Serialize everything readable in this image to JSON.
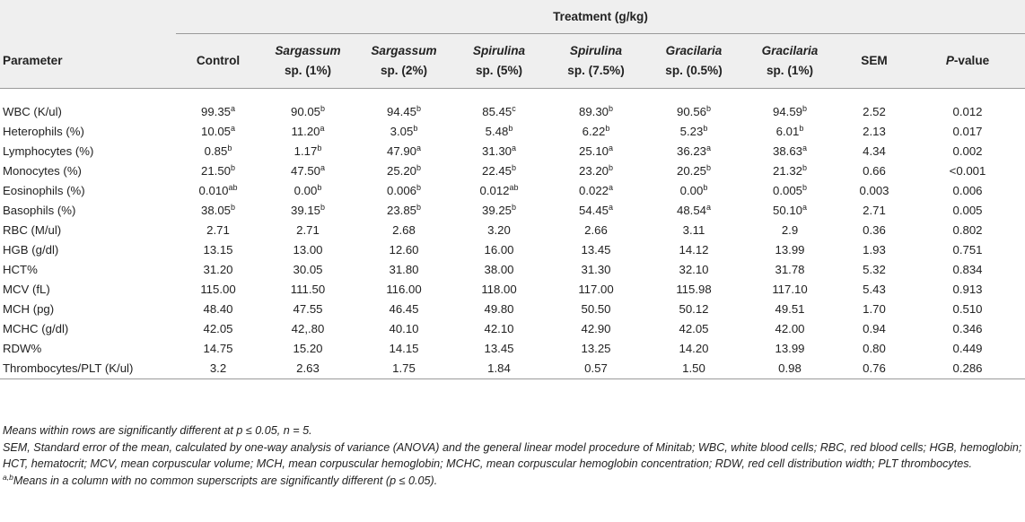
{
  "table": {
    "group_header": "Treatment (g/kg)",
    "columns": [
      {
        "main": "Parameter",
        "italic_part": "",
        "rest": ""
      },
      {
        "main": "Control",
        "italic_part": "",
        "rest": ""
      },
      {
        "main": "",
        "italic_part": "Sargassum",
        "rest": "sp. (1%)"
      },
      {
        "main": "",
        "italic_part": "Sargassum",
        "rest": "sp. (2%)"
      },
      {
        "main": "",
        "italic_part": "Spirulina",
        "rest": "sp. (5%)"
      },
      {
        "main": "",
        "italic_part": "Spirulina",
        "rest": "sp. (7.5%)"
      },
      {
        "main": "",
        "italic_part": "Gracilaria",
        "rest": "sp. (0.5%)"
      },
      {
        "main": "",
        "italic_part": "Gracilaria",
        "rest": "sp. (1%)"
      },
      {
        "main": "SEM",
        "italic_part": "",
        "rest": ""
      },
      {
        "main": "",
        "italic_part": "P",
        "rest": "-value"
      }
    ],
    "rows": [
      {
        "param": "WBC (K/ul)",
        "cells": [
          [
            "99.35",
            "a"
          ],
          [
            "90.05",
            "b"
          ],
          [
            "94.45",
            "b"
          ],
          [
            "85.45",
            "c"
          ],
          [
            "89.30",
            "b"
          ],
          [
            "90.56",
            "b"
          ],
          [
            "94.59",
            "b"
          ],
          [
            "2.52",
            ""
          ],
          [
            "0.012",
            ""
          ]
        ]
      },
      {
        "param": "Heterophils (%)",
        "cells": [
          [
            "10.05",
            "a"
          ],
          [
            "11.20",
            "a"
          ],
          [
            "3.05",
            "b"
          ],
          [
            "5.48",
            "b"
          ],
          [
            "6.22",
            "b"
          ],
          [
            "5.23",
            "b"
          ],
          [
            "6.01",
            "b"
          ],
          [
            "2.13",
            ""
          ],
          [
            "0.017",
            ""
          ]
        ]
      },
      {
        "param": "Lymphocytes (%)",
        "cells": [
          [
            "0.85",
            "b"
          ],
          [
            "1.17",
            "b"
          ],
          [
            "47.90",
            "a"
          ],
          [
            "31.30",
            "a"
          ],
          [
            "25.10",
            "a"
          ],
          [
            "36.23",
            "a"
          ],
          [
            "38.63",
            "a"
          ],
          [
            "4.34",
            ""
          ],
          [
            "0.002",
            ""
          ]
        ]
      },
      {
        "param": "Monocytes (%)",
        "cells": [
          [
            "21.50",
            "b"
          ],
          [
            "47.50",
            "a"
          ],
          [
            "25.20",
            "b"
          ],
          [
            "22.45",
            "b"
          ],
          [
            "23.20",
            "b"
          ],
          [
            "20.25",
            "b"
          ],
          [
            "21.32",
            "b"
          ],
          [
            "0.66",
            ""
          ],
          [
            "<0.001",
            ""
          ]
        ]
      },
      {
        "param": "Eosinophils (%)",
        "cells": [
          [
            "0.010",
            "ab"
          ],
          [
            "0.00",
            "b"
          ],
          [
            "0.006",
            "b"
          ],
          [
            "0.012",
            "ab"
          ],
          [
            "0.022",
            "a"
          ],
          [
            "0.00",
            "b"
          ],
          [
            "0.005",
            "b"
          ],
          [
            "0.003",
            ""
          ],
          [
            "0.006",
            ""
          ]
        ]
      },
      {
        "param": "Basophils (%)",
        "cells": [
          [
            "38.05",
            "b"
          ],
          [
            "39.15",
            "b"
          ],
          [
            "23.85",
            "b"
          ],
          [
            "39.25",
            "b"
          ],
          [
            "54.45",
            "a"
          ],
          [
            "48.54",
            "a"
          ],
          [
            "50.10",
            "a"
          ],
          [
            "2.71",
            ""
          ],
          [
            "0.005",
            ""
          ]
        ]
      },
      {
        "param": "RBC (M/ul)",
        "cells": [
          [
            "2.71",
            ""
          ],
          [
            "2.71",
            ""
          ],
          [
            "2.68",
            ""
          ],
          [
            "3.20",
            ""
          ],
          [
            "2.66",
            ""
          ],
          [
            "3.11",
            ""
          ],
          [
            "2.9",
            ""
          ],
          [
            "0.36",
            ""
          ],
          [
            "0.802",
            ""
          ]
        ]
      },
      {
        "param": "HGB (g/dl)",
        "cells": [
          [
            "13.15",
            ""
          ],
          [
            "13.00",
            ""
          ],
          [
            "12.60",
            ""
          ],
          [
            "16.00",
            ""
          ],
          [
            "13.45",
            ""
          ],
          [
            "14.12",
            ""
          ],
          [
            "13.99",
            ""
          ],
          [
            "1.93",
            ""
          ],
          [
            "0.751",
            ""
          ]
        ]
      },
      {
        "param": "HCT%",
        "cells": [
          [
            "31.20",
            ""
          ],
          [
            "30.05",
            ""
          ],
          [
            "31.80",
            ""
          ],
          [
            "38.00",
            ""
          ],
          [
            "31.30",
            ""
          ],
          [
            "32.10",
            ""
          ],
          [
            "31.78",
            ""
          ],
          [
            "5.32",
            ""
          ],
          [
            "0.834",
            ""
          ]
        ]
      },
      {
        "param": "MCV (fL)",
        "cells": [
          [
            "115.00",
            ""
          ],
          [
            "111.50",
            ""
          ],
          [
            "116.00",
            ""
          ],
          [
            "118.00",
            ""
          ],
          [
            "117.00",
            ""
          ],
          [
            "115.98",
            ""
          ],
          [
            "117.10",
            ""
          ],
          [
            "5.43",
            ""
          ],
          [
            "0.913",
            ""
          ]
        ]
      },
      {
        "param": "MCH (pg)",
        "cells": [
          [
            "48.40",
            ""
          ],
          [
            "47.55",
            ""
          ],
          [
            "46.45",
            ""
          ],
          [
            "49.80",
            ""
          ],
          [
            "50.50",
            ""
          ],
          [
            "50.12",
            ""
          ],
          [
            "49.51",
            ""
          ],
          [
            "1.70",
            ""
          ],
          [
            "0.510",
            ""
          ]
        ]
      },
      {
        "param": "MCHC (g/dl)",
        "cells": [
          [
            "42.05",
            ""
          ],
          [
            "42,.80",
            ""
          ],
          [
            "40.10",
            ""
          ],
          [
            "42.10",
            ""
          ],
          [
            "42.90",
            ""
          ],
          [
            "42.05",
            ""
          ],
          [
            "42.00",
            ""
          ],
          [
            "0.94",
            ""
          ],
          [
            "0.346",
            ""
          ]
        ]
      },
      {
        "param": "RDW%",
        "cells": [
          [
            "14.75",
            ""
          ],
          [
            "15.20",
            ""
          ],
          [
            "14.15",
            ""
          ],
          [
            "13.45",
            ""
          ],
          [
            "13.25",
            ""
          ],
          [
            "14.20",
            ""
          ],
          [
            "13.99",
            ""
          ],
          [
            "0.80",
            ""
          ],
          [
            "0.449",
            ""
          ]
        ]
      },
      {
        "param": "Thrombocytes/PLT (K/ul)",
        "cells": [
          [
            "3.2",
            ""
          ],
          [
            "2.63",
            ""
          ],
          [
            "1.75",
            ""
          ],
          [
            "1.84",
            ""
          ],
          [
            "0.57",
            ""
          ],
          [
            "1.50",
            ""
          ],
          [
            "0.98",
            ""
          ],
          [
            "0.76",
            ""
          ],
          [
            "0.286",
            ""
          ]
        ]
      }
    ]
  },
  "footnotes": {
    "line1": "Means within rows are significantly different at p ≤ 0.05, n = 5.",
    "line2": "SEM, Standard error of the mean, calculated by one-way analysis of variance (ANOVA) and the general linear model procedure of Minitab; WBC, white blood cells; RBC, red blood cells; HGB, hemoglobin; HCT, hematocrit; MCV, mean corpuscular volume; MCH, mean corpuscular hemoglobin; MCHC, mean corpuscular hemoglobin concentration; RDW, red cell distribution width; PLT thrombocytes.",
    "line3_sup": "a,b",
    "line3": "Means in a column with no common superscripts are significantly different (p ≤ 0.05)."
  }
}
